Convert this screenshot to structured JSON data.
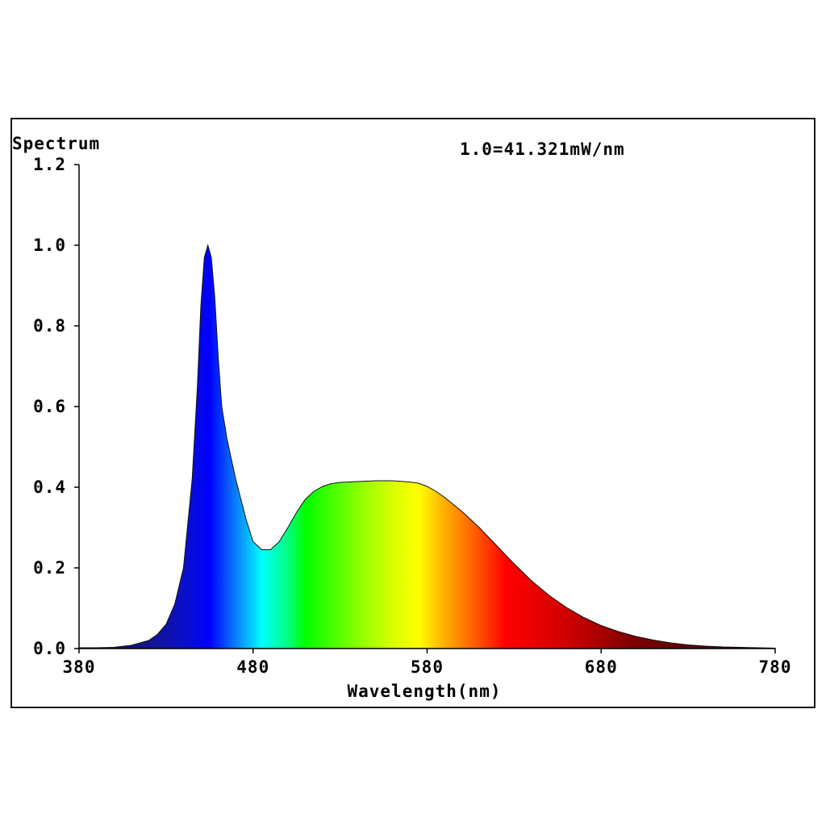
{
  "chart_data": {
    "type": "area",
    "ylabel": "Spectrum",
    "xlabel": "Wavelength(nm)",
    "annotation": "1.0=41.321mW/nm",
    "xlim": [
      380,
      780
    ],
    "ylim": [
      0,
      1.2
    ],
    "x_ticks": [
      "380",
      "480",
      "580",
      "680",
      "780"
    ],
    "y_ticks": [
      "0.0",
      "0.2",
      "0.4",
      "0.6",
      "0.8",
      "1.0",
      "1.2"
    ],
    "grid": false,
    "fill": "wavelength-spectrum-colors",
    "series": [
      {
        "x": [
          380,
          390,
          400,
          410,
          420,
          425,
          430,
          435,
          440,
          445,
          448,
          450,
          452,
          454,
          456,
          458,
          460,
          462,
          465,
          468,
          470,
          473,
          476,
          480,
          485,
          490,
          495,
          500,
          505,
          510,
          515,
          520,
          525,
          530,
          540,
          550,
          560,
          570,
          575,
          580,
          585,
          590,
          600,
          610,
          620,
          630,
          640,
          650,
          660,
          670,
          680,
          690,
          700,
          710,
          720,
          730,
          740,
          750,
          760,
          770,
          780
        ],
        "values": [
          0.002,
          0.002,
          0.003,
          0.008,
          0.02,
          0.035,
          0.06,
          0.11,
          0.2,
          0.42,
          0.65,
          0.85,
          0.97,
          1.0,
          0.97,
          0.87,
          0.72,
          0.6,
          0.52,
          0.46,
          0.42,
          0.37,
          0.32,
          0.265,
          0.245,
          0.245,
          0.265,
          0.3,
          0.338,
          0.37,
          0.39,
          0.402,
          0.409,
          0.412,
          0.414,
          0.416,
          0.416,
          0.413,
          0.41,
          0.402,
          0.39,
          0.375,
          0.34,
          0.3,
          0.255,
          0.21,
          0.168,
          0.132,
          0.102,
          0.077,
          0.057,
          0.042,
          0.03,
          0.021,
          0.014,
          0.009,
          0.006,
          0.004,
          0.003,
          0.002,
          0.001
        ]
      }
    ]
  }
}
